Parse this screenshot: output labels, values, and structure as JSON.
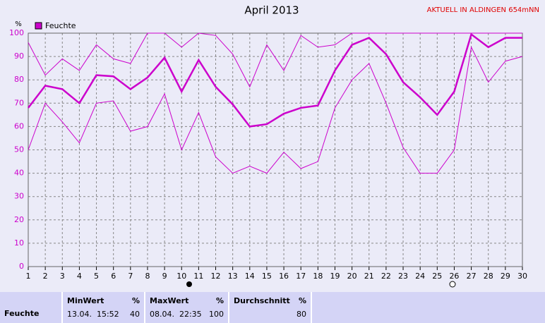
{
  "chart_data": {
    "type": "line",
    "title": "April 2013",
    "subtitle": "AKTUELL IN ALDINGEN 654mNN",
    "y_label": "%",
    "x": [
      1,
      2,
      3,
      4,
      5,
      6,
      7,
      8,
      9,
      10,
      11,
      12,
      13,
      14,
      15,
      16,
      17,
      18,
      19,
      20,
      21,
      22,
      23,
      24,
      25,
      26,
      27,
      28,
      29,
      30
    ],
    "xlim": [
      1,
      30
    ],
    "xticks": [
      1,
      2,
      3,
      4,
      5,
      6,
      7,
      8,
      9,
      10,
      11,
      12,
      13,
      14,
      15,
      16,
      17,
      18,
      19,
      20,
      21,
      22,
      23,
      24,
      25,
      26,
      27,
      28,
      29,
      30
    ],
    "ylim": [
      0,
      100
    ],
    "yticks": [
      0,
      10,
      20,
      30,
      40,
      50,
      60,
      70,
      80,
      90,
      100
    ],
    "grid": true,
    "legend": "top-left",
    "series": [
      {
        "name": "Feuchte",
        "color": "#cc00cc",
        "values": [
          68,
          77.5,
          76,
          70,
          82,
          81.5,
          76,
          81,
          89.5,
          75,
          88.5,
          77,
          69.5,
          60,
          61,
          65.5,
          68,
          69,
          84,
          95,
          98,
          91,
          79,
          72.5,
          65,
          75,
          99.5,
          94,
          98,
          98
        ]
      },
      {
        "color": "#cc00cc",
        "values": [
          96,
          82,
          89,
          84,
          95,
          89,
          87,
          100,
          100,
          94,
          100,
          99,
          91,
          77,
          95,
          84,
          99,
          94,
          95,
          100,
          100,
          100,
          100,
          100,
          100,
          100,
          100,
          100,
          100,
          100
        ]
      },
      {
        "color": "#cc00cc",
        "values": [
          50,
          70,
          62,
          53,
          70,
          71,
          58,
          60,
          74,
          50,
          66,
          47,
          40,
          43,
          40,
          49,
          42,
          45,
          68,
          80,
          87,
          70,
          51,
          40,
          40,
          50,
          94,
          79,
          88,
          90
        ]
      }
    ]
  },
  "table": {
    "columns": [
      {
        "title": "MinWert",
        "unit": "%"
      },
      {
        "title": "MaxWert",
        "unit": "%"
      },
      {
        "title": "Durchschnitt",
        "unit": "%"
      }
    ],
    "rows": [
      {
        "label": "Feuchte",
        "min_time": "13.04.  15:52",
        "min": "40",
        "max_time": "08.04.  22:35",
        "max": "100",
        "avg": "80"
      }
    ]
  }
}
